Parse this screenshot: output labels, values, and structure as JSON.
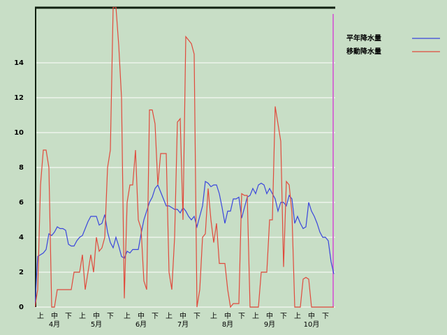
{
  "chart_data": {
    "type": "line",
    "categories": [
      null,
      null,
      "上",
      null,
      null,
      null,
      null,
      "中",
      null,
      null,
      null,
      null,
      "下",
      null,
      null,
      null,
      null,
      "上",
      null,
      null,
      null,
      null,
      "中",
      null,
      null,
      null,
      null,
      "下",
      null,
      null,
      null,
      null,
      null,
      "上",
      null,
      null,
      null,
      null,
      "中",
      null,
      null,
      null,
      null,
      "下",
      null,
      null,
      null,
      null,
      "上",
      null,
      null,
      null,
      null,
      "中",
      null,
      null,
      null,
      null,
      "下",
      null,
      null,
      null,
      null,
      null,
      "上",
      null,
      null,
      null,
      null,
      "中",
      null,
      null,
      null,
      null,
      "下",
      null,
      null,
      null,
      null,
      "上",
      null,
      null,
      null,
      null,
      "中",
      null,
      null,
      null,
      null,
      "下",
      null,
      null,
      null,
      null,
      "上",
      null,
      null,
      null,
      null,
      "中",
      null,
      null,
      null,
      null,
      "下",
      null,
      null,
      null
    ],
    "months": [
      null,
      null,
      null,
      null,
      null,
      null,
      null,
      "4月",
      null,
      null,
      null,
      null,
      null,
      null,
      null,
      null,
      null,
      null,
      null,
      null,
      null,
      null,
      "5月",
      null,
      null,
      null,
      null,
      null,
      null,
      null,
      null,
      null,
      null,
      null,
      null,
      null,
      null,
      null,
      "6月",
      null,
      null,
      null,
      null,
      null,
      null,
      null,
      null,
      null,
      null,
      null,
      null,
      null,
      null,
      "7月",
      null,
      null,
      null,
      null,
      null,
      null,
      null,
      null,
      null,
      null,
      null,
      null,
      null,
      null,
      null,
      "8月",
      null,
      null,
      null,
      null,
      null,
      null,
      null,
      null,
      null,
      null,
      null,
      null,
      null,
      null,
      "9月",
      null,
      null,
      null,
      null,
      null,
      null,
      null,
      null,
      null,
      null,
      null,
      null,
      null,
      null,
      "10月",
      null,
      null,
      null,
      null,
      null,
      null,
      null,
      null
    ],
    "series": [
      {
        "name": "平年降水量",
        "color": "#3a46dc",
        "values": [
          0,
          2.9,
          3,
          3.1,
          3.3,
          4.2,
          4.1,
          4.3,
          4.6,
          4.5,
          4.5,
          4.4,
          3.6,
          3.5,
          3.5,
          3.8,
          4,
          4.1,
          4.5,
          4.9,
          5.2,
          5.2,
          5.2,
          4.7,
          4.8,
          5.3,
          4.3,
          3.7,
          3.4,
          4,
          3.5,
          2.9,
          2.8,
          3.2,
          3.1,
          3.3,
          3.3,
          3.3,
          4.2,
          5,
          5.5,
          6,
          6.3,
          6.8,
          7,
          6.6,
          6.2,
          5.8,
          5.8,
          5.7,
          5.6,
          5.6,
          5.4,
          5.7,
          5.5,
          5.2,
          5,
          5.2,
          4.6,
          5.2,
          5.8,
          7.2,
          7.1,
          6.9,
          7,
          7,
          6.5,
          5.7,
          4.8,
          5.5,
          5.5,
          6.2,
          6.2,
          6.3,
          5.1,
          5.7,
          6.3,
          6.4,
          6.8,
          6.5,
          7,
          7.1,
          7,
          6.5,
          6.8,
          6.5,
          6.2,
          5.5,
          6,
          6,
          5.8,
          6.4,
          6.2,
          4.8,
          5.2,
          4.8,
          4.5,
          4.6,
          6,
          5.5,
          5.2,
          4.8,
          4.3,
          4,
          4,
          3.8,
          2.6,
          1.9
        ]
      },
      {
        "name": "移動降水量",
        "color": "#e04a3c",
        "values": [
          0,
          1,
          7,
          9,
          9,
          8,
          0,
          0,
          1,
          1,
          1,
          1,
          1,
          1,
          2,
          2,
          2,
          3,
          1,
          2,
          3,
          2,
          4,
          3.2,
          3.4,
          4,
          8,
          9,
          17.2,
          17.2,
          15,
          12,
          0.5,
          6,
          7,
          7,
          9,
          5,
          4.5,
          1.5,
          1,
          11.3,
          11.3,
          10.5,
          7,
          8.8,
          8.8,
          8.8,
          2,
          1,
          4,
          10.6,
          10.8,
          5,
          15.5,
          15.3,
          15.1,
          14.5,
          0,
          1,
          4,
          4.2,
          6.8,
          5,
          3.7,
          4.8,
          2.5,
          2.5,
          2.5,
          1,
          0,
          0.2,
          0.2,
          0.2,
          6.5,
          6.4,
          6.4,
          0,
          0,
          0,
          0,
          2,
          2,
          2,
          5,
          5,
          11.5,
          10.5,
          9.5,
          2.3,
          7.2,
          7,
          5.4,
          0,
          0,
          0,
          1.6,
          1.7,
          1.6,
          0,
          0,
          0,
          0,
          0,
          0,
          0,
          0,
          0
        ]
      }
    ],
    "ylim": [
      0,
      17.2
    ],
    "yticks": [
      0,
      2,
      4,
      6,
      8,
      10,
      12,
      14
    ],
    "grid": true
  }
}
